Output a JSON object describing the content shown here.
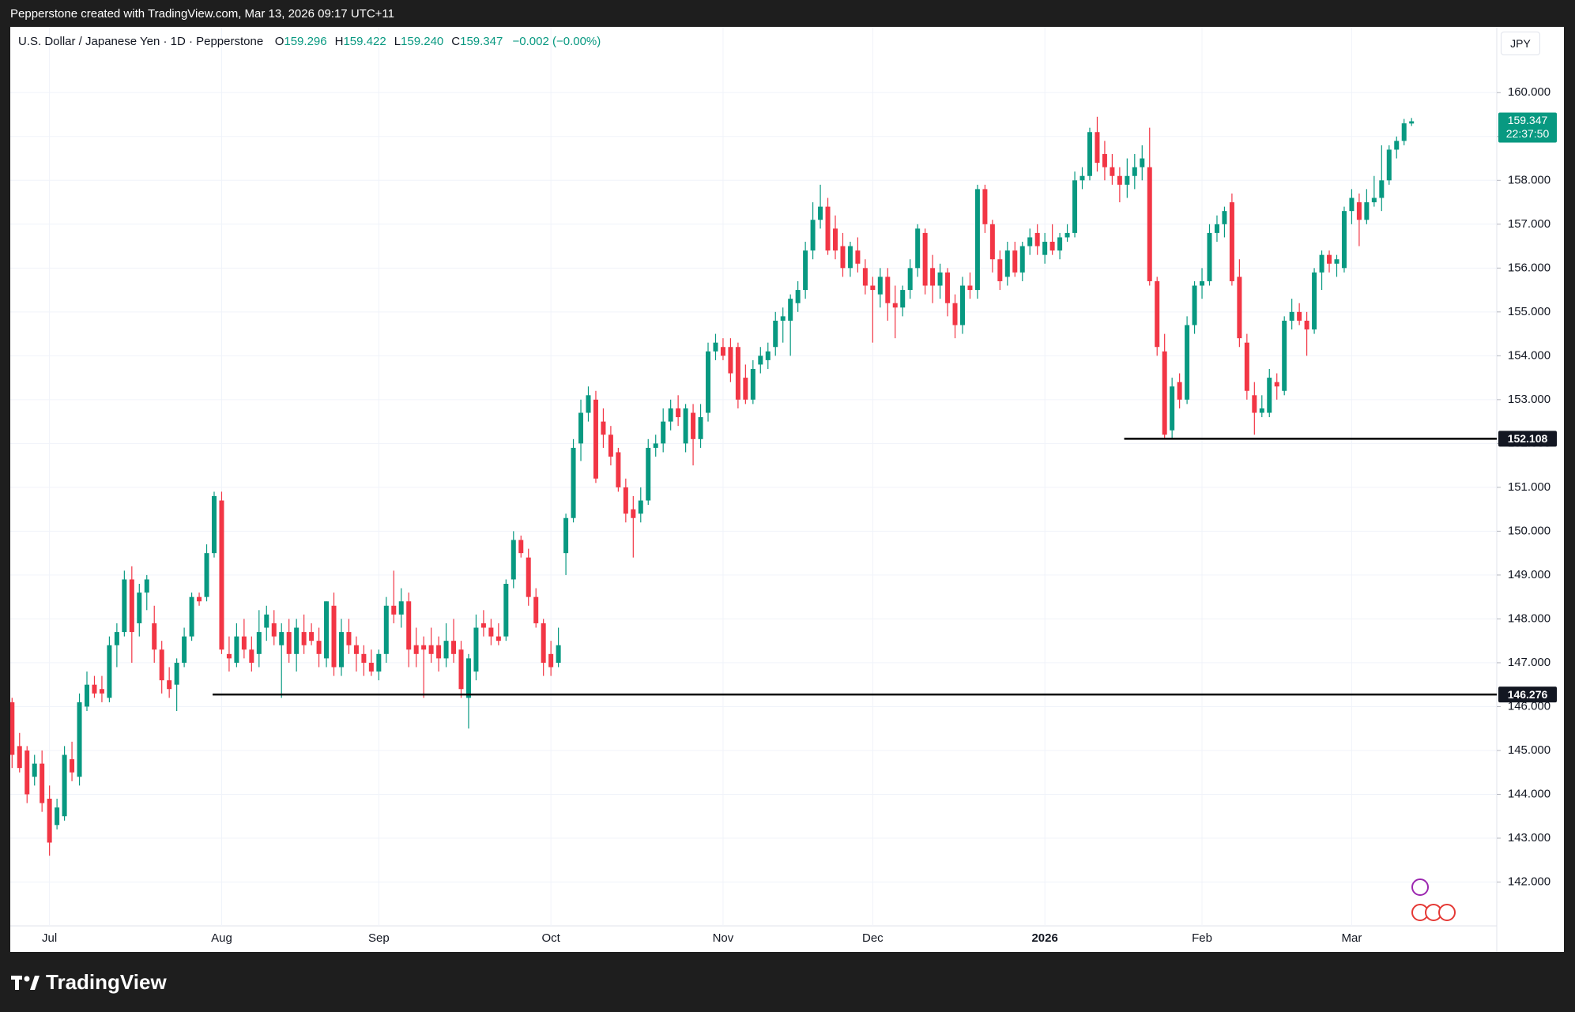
{
  "top_bar": "Pepperstone created with TradingView.com, Mar 13, 2026 09:17 UTC+11",
  "footer_logo": "TradingView",
  "currency_button": "JPY",
  "chart_data": {
    "type": "candlestick",
    "title": "U.S. Dollar / Japanese Yen · 1D · Pepperstone",
    "legend": [
      {
        "label": "O",
        "value": "159.296"
      },
      {
        "label": "H",
        "value": "159.422"
      },
      {
        "label": "L",
        "value": "159.240"
      },
      {
        "label": "C",
        "value": "159.347"
      }
    ],
    "change": "−0.002 (−0.00%)",
    "countdown": "22:37:50",
    "up_color": "#089981",
    "down_color": "#f23645",
    "grid": true,
    "ylim": [
      141,
      161.5
    ],
    "yticks": [
      {
        "value": 142,
        "label": "142.000"
      },
      {
        "value": 143,
        "label": "143.000"
      },
      {
        "value": 144,
        "label": "144.000"
      },
      {
        "value": 145,
        "label": "145.000"
      },
      {
        "value": 146,
        "label": "146.000"
      },
      {
        "value": 147,
        "label": "147.000"
      },
      {
        "value": 148,
        "label": "148.000"
      },
      {
        "value": 149,
        "label": "149.000"
      },
      {
        "value": 150,
        "label": "150.000"
      },
      {
        "value": 151,
        "label": "151.000"
      },
      {
        "value": 152,
        "label": "152.000"
      },
      {
        "value": 153,
        "label": "153.000"
      },
      {
        "value": 154,
        "label": "154.000"
      },
      {
        "value": 155,
        "label": "155.000"
      },
      {
        "value": 156,
        "label": "156.000"
      },
      {
        "value": 157,
        "label": "157.000"
      },
      {
        "value": 158,
        "label": "158.000"
      },
      {
        "value": 159,
        "label": "159.000"
      },
      {
        "value": 160,
        "label": "160.000"
      }
    ],
    "hlines": [
      {
        "value": 152.108
      },
      {
        "value": 146.276
      }
    ],
    "categories": [
      null,
      null,
      null,
      null,
      null,
      "Jul",
      null,
      null,
      null,
      null,
      null,
      null,
      null,
      null,
      null,
      null,
      null,
      null,
      null,
      null,
      null,
      null,
      null,
      null,
      null,
      null,
      null,
      null,
      "Aug",
      null,
      null,
      null,
      null,
      null,
      null,
      null,
      null,
      null,
      null,
      null,
      null,
      null,
      null,
      null,
      null,
      null,
      null,
      null,
      null,
      "Sep",
      null,
      null,
      null,
      null,
      null,
      null,
      null,
      null,
      null,
      null,
      null,
      null,
      null,
      null,
      null,
      null,
      null,
      null,
      null,
      null,
      null,
      null,
      "Oct",
      null,
      null,
      null,
      null,
      null,
      null,
      null,
      null,
      null,
      null,
      null,
      null,
      null,
      null,
      null,
      null,
      null,
      null,
      null,
      null,
      null,
      null,
      "Nov",
      null,
      null,
      null,
      null,
      null,
      null,
      null,
      null,
      null,
      null,
      null,
      null,
      null,
      null,
      null,
      null,
      null,
      null,
      null,
      "Dec",
      null,
      null,
      null,
      null,
      null,
      null,
      null,
      null,
      null,
      null,
      null,
      null,
      null,
      null,
      null,
      null,
      null,
      null,
      null,
      null,
      null,
      null,
      "2026",
      null,
      null,
      null,
      null,
      null,
      null,
      null,
      null,
      null,
      null,
      null,
      null,
      null,
      null,
      null,
      null,
      null,
      null,
      null,
      null,
      "Feb",
      null,
      null,
      null,
      null,
      null,
      null,
      null,
      null,
      null,
      null,
      null,
      null,
      null,
      null,
      null,
      null,
      null,
      null,
      null,
      "Mar",
      null,
      null,
      null,
      null,
      null,
      null,
      null,
      null
    ],
    "ohlc": [
      [
        146.1,
        146.2,
        144.6,
        144.9
      ],
      [
        145.1,
        145.4,
        144.5,
        144.6
      ],
      [
        145.0,
        145.1,
        143.8,
        144.0
      ],
      [
        144.4,
        144.9,
        144.2,
        144.7
      ],
      [
        144.7,
        145.0,
        143.6,
        143.8
      ],
      [
        143.9,
        144.2,
        142.6,
        142.9
      ],
      [
        143.3,
        143.9,
        143.2,
        143.7
      ],
      [
        143.5,
        145.1,
        143.4,
        144.9
      ],
      [
        144.8,
        145.2,
        144.3,
        144.5
      ],
      [
        144.4,
        146.3,
        144.2,
        146.1
      ],
      [
        146.0,
        146.8,
        145.9,
        146.5
      ],
      [
        146.5,
        146.7,
        146.2,
        146.3
      ],
      [
        146.4,
        146.7,
        146.1,
        146.3
      ],
      [
        146.2,
        147.6,
        146.1,
        147.4
      ],
      [
        147.4,
        147.9,
        146.9,
        147.7
      ],
      [
        147.7,
        149.1,
        147.6,
        148.9
      ],
      [
        148.9,
        149.2,
        147.0,
        147.7
      ],
      [
        147.9,
        148.8,
        147.6,
        148.6
      ],
      [
        148.6,
        149.0,
        148.2,
        148.9
      ],
      [
        147.9,
        148.3,
        147.0,
        147.3
      ],
      [
        147.3,
        147.5,
        146.3,
        146.6
      ],
      [
        146.6,
        146.9,
        146.2,
        146.4
      ],
      [
        146.5,
        147.1,
        145.9,
        147.0
      ],
      [
        147.0,
        147.8,
        146.9,
        147.6
      ],
      [
        147.6,
        148.6,
        147.5,
        148.5
      ],
      [
        148.5,
        148.6,
        148.3,
        148.4
      ],
      [
        148.5,
        149.7,
        148.4,
        149.5
      ],
      [
        149.5,
        150.9,
        149.4,
        150.8
      ],
      [
        150.7,
        150.9,
        147.2,
        147.3
      ],
      [
        147.2,
        147.6,
        146.8,
        147.1
      ],
      [
        147.0,
        147.9,
        146.9,
        147.6
      ],
      [
        147.6,
        148.0,
        147.1,
        147.3
      ],
      [
        147.3,
        147.6,
        146.8,
        147.0
      ],
      [
        147.2,
        148.2,
        146.9,
        147.7
      ],
      [
        147.8,
        148.3,
        147.5,
        148.1
      ],
      [
        147.9,
        148.2,
        147.4,
        147.6
      ],
      [
        147.4,
        147.9,
        146.2,
        147.7
      ],
      [
        147.7,
        148.0,
        147.0,
        147.2
      ],
      [
        147.2,
        148.0,
        146.8,
        147.8
      ],
      [
        147.7,
        148.1,
        147.2,
        147.4
      ],
      [
        147.7,
        147.9,
        147.4,
        147.5
      ],
      [
        147.5,
        147.8,
        146.9,
        147.2
      ],
      [
        147.1,
        148.4,
        146.9,
        148.4
      ],
      [
        148.3,
        148.6,
        146.7,
        146.9
      ],
      [
        146.9,
        148.0,
        146.7,
        147.7
      ],
      [
        147.7,
        148.0,
        147.2,
        147.4
      ],
      [
        147.4,
        147.6,
        146.8,
        147.2
      ],
      [
        147.2,
        147.4,
        146.7,
        147.0
      ],
      [
        147.0,
        147.3,
        146.7,
        146.8
      ],
      [
        146.8,
        147.3,
        146.6,
        147.2
      ],
      [
        147.2,
        148.5,
        147.0,
        148.3
      ],
      [
        148.3,
        149.1,
        147.9,
        148.1
      ],
      [
        148.1,
        148.7,
        147.8,
        148.4
      ],
      [
        148.4,
        148.6,
        146.9,
        147.3
      ],
      [
        147.4,
        147.8,
        146.9,
        147.2
      ],
      [
        147.4,
        147.6,
        146.2,
        147.3
      ],
      [
        147.4,
        147.8,
        147.0,
        147.2
      ],
      [
        147.4,
        147.6,
        146.8,
        147.1
      ],
      [
        147.1,
        147.9,
        146.9,
        147.5
      ],
      [
        147.5,
        148.0,
        147.0,
        147.2
      ],
      [
        147.3,
        147.5,
        146.2,
        146.4
      ],
      [
        146.2,
        147.2,
        145.5,
        147.1
      ],
      [
        146.8,
        148.1,
        146.6,
        147.8
      ],
      [
        147.9,
        148.2,
        147.6,
        147.8
      ],
      [
        147.8,
        148.0,
        147.4,
        147.6
      ],
      [
        147.6,
        147.9,
        147.4,
        147.5
      ],
      [
        147.6,
        148.9,
        147.5,
        148.8
      ],
      [
        148.9,
        150.0,
        148.7,
        149.8
      ],
      [
        149.8,
        149.9,
        149.4,
        149.5
      ],
      [
        149.4,
        149.6,
        148.3,
        148.5
      ],
      [
        148.5,
        148.7,
        147.8,
        147.9
      ],
      [
        147.9,
        148.0,
        146.7,
        147.0
      ],
      [
        147.2,
        147.5,
        146.7,
        146.9
      ],
      [
        147.0,
        147.8,
        146.9,
        147.4
      ],
      [
        149.5,
        150.4,
        149.0,
        150.3
      ],
      [
        150.3,
        152.1,
        150.2,
        151.9
      ],
      [
        152.0,
        153.0,
        151.6,
        152.7
      ],
      [
        152.7,
        153.3,
        152.5,
        153.1
      ],
      [
        153.0,
        153.2,
        151.1,
        151.2
      ],
      [
        152.5,
        152.8,
        151.9,
        152.2
      ],
      [
        152.2,
        152.4,
        151.5,
        151.7
      ],
      [
        151.8,
        151.9,
        150.9,
        151.0
      ],
      [
        151.0,
        151.2,
        150.2,
        150.4
      ],
      [
        150.5,
        150.8,
        149.4,
        150.3
      ],
      [
        150.4,
        151.0,
        150.2,
        150.7
      ],
      [
        150.7,
        152.1,
        150.6,
        151.9
      ],
      [
        151.9,
        152.2,
        151.7,
        152.0
      ],
      [
        152.0,
        152.8,
        151.8,
        152.5
      ],
      [
        152.5,
        153.0,
        152.3,
        152.8
      ],
      [
        152.8,
        153.1,
        152.4,
        152.6
      ],
      [
        152.0,
        152.9,
        151.8,
        152.8
      ],
      [
        152.7,
        152.9,
        151.5,
        152.1
      ],
      [
        152.1,
        152.9,
        151.9,
        152.6
      ],
      [
        152.7,
        154.3,
        152.5,
        154.1
      ],
      [
        154.1,
        154.5,
        153.9,
        154.3
      ],
      [
        154.2,
        154.4,
        153.9,
        154.0
      ],
      [
        154.2,
        154.4,
        153.4,
        153.6
      ],
      [
        154.2,
        154.3,
        152.8,
        153.0
      ],
      [
        153.5,
        153.8,
        152.9,
        153.0
      ],
      [
        153.0,
        153.9,
        152.9,
        153.7
      ],
      [
        153.8,
        154.2,
        153.6,
        154.0
      ],
      [
        153.9,
        154.3,
        153.7,
        154.1
      ],
      [
        154.2,
        155.0,
        154.0,
        154.8
      ],
      [
        154.8,
        155.1,
        154.3,
        154.9
      ],
      [
        154.8,
        155.4,
        154.0,
        155.3
      ],
      [
        155.2,
        155.7,
        155.0,
        155.5
      ],
      [
        155.5,
        156.6,
        155.3,
        156.4
      ],
      [
        156.4,
        157.5,
        156.2,
        157.1
      ],
      [
        157.1,
        157.9,
        156.9,
        157.4
      ],
      [
        157.4,
        157.6,
        156.3,
        156.4
      ],
      [
        156.9,
        157.2,
        156.2,
        156.4
      ],
      [
        156.5,
        156.8,
        155.8,
        156.0
      ],
      [
        156.0,
        156.6,
        155.8,
        156.5
      ],
      [
        156.4,
        156.7,
        155.9,
        156.1
      ],
      [
        156.0,
        156.2,
        155.4,
        155.6
      ],
      [
        155.6,
        155.8,
        154.3,
        155.5
      ],
      [
        155.4,
        156.0,
        155.1,
        155.8
      ],
      [
        155.8,
        156.0,
        154.8,
        155.2
      ],
      [
        155.2,
        155.6,
        154.4,
        155.1
      ],
      [
        155.1,
        155.6,
        154.9,
        155.5
      ],
      [
        155.5,
        156.2,
        155.3,
        156.0
      ],
      [
        156.0,
        157.0,
        155.8,
        156.9
      ],
      [
        156.8,
        156.9,
        155.4,
        155.6
      ],
      [
        156.0,
        156.3,
        155.2,
        155.6
      ],
      [
        155.6,
        156.1,
        155.3,
        155.9
      ],
      [
        155.9,
        156.0,
        154.9,
        155.2
      ],
      [
        155.2,
        155.4,
        154.4,
        154.7
      ],
      [
        154.7,
        155.8,
        154.5,
        155.6
      ],
      [
        155.6,
        155.9,
        155.3,
        155.5
      ],
      [
        155.5,
        157.9,
        155.3,
        157.8
      ],
      [
        157.8,
        157.9,
        156.8,
        157.0
      ],
      [
        157.0,
        157.1,
        155.9,
        156.2
      ],
      [
        156.2,
        156.4,
        155.5,
        155.7
      ],
      [
        155.8,
        156.6,
        155.6,
        156.4
      ],
      [
        156.4,
        156.6,
        155.8,
        155.9
      ],
      [
        155.9,
        156.6,
        155.7,
        156.5
      ],
      [
        156.5,
        156.9,
        156.3,
        156.7
      ],
      [
        156.8,
        157.0,
        156.3,
        156.5
      ],
      [
        156.3,
        156.8,
        156.1,
        156.6
      ],
      [
        156.6,
        157.0,
        156.3,
        156.4
      ],
      [
        156.4,
        156.8,
        156.2,
        156.7
      ],
      [
        156.7,
        157.0,
        156.6,
        156.8
      ],
      [
        156.8,
        158.2,
        156.7,
        158.0
      ],
      [
        158.0,
        158.3,
        157.8,
        158.1
      ],
      [
        158.1,
        159.2,
        158.0,
        159.1
      ],
      [
        159.1,
        159.45,
        158.2,
        158.4
      ],
      [
        158.6,
        158.9,
        158.0,
        158.3
      ],
      [
        158.3,
        158.6,
        157.9,
        158.1
      ],
      [
        158.1,
        158.3,
        157.5,
        157.9
      ],
      [
        157.9,
        158.5,
        157.6,
        158.1
      ],
      [
        158.1,
        158.6,
        157.8,
        158.3
      ],
      [
        158.3,
        158.8,
        158.0,
        158.5
      ],
      [
        158.3,
        159.2,
        155.6,
        155.7
      ],
      [
        155.7,
        155.8,
        154.0,
        154.2
      ],
      [
        154.1,
        154.5,
        152.108,
        152.2
      ],
      [
        152.3,
        153.5,
        152.1,
        153.3
      ],
      [
        153.4,
        153.6,
        152.8,
        153.0
      ],
      [
        153.0,
        154.9,
        152.9,
        154.7
      ],
      [
        154.7,
        155.7,
        154.5,
        155.6
      ],
      [
        155.6,
        156.0,
        155.3,
        155.7
      ],
      [
        155.7,
        157.0,
        155.6,
        156.8
      ],
      [
        156.8,
        157.2,
        156.6,
        157.0
      ],
      [
        157.0,
        157.4,
        156.7,
        157.3
      ],
      [
        157.5,
        157.7,
        155.6,
        155.7
      ],
      [
        155.8,
        156.2,
        154.2,
        154.4
      ],
      [
        154.3,
        154.5,
        153.0,
        153.2
      ],
      [
        153.1,
        153.4,
        152.2,
        152.7
      ],
      [
        152.7,
        153.1,
        152.6,
        152.8
      ],
      [
        152.7,
        153.7,
        152.6,
        153.5
      ],
      [
        153.4,
        153.6,
        153.0,
        153.3
      ],
      [
        153.2,
        154.9,
        153.1,
        154.8
      ],
      [
        154.8,
        155.3,
        154.6,
        155.0
      ],
      [
        155.0,
        155.2,
        154.7,
        154.8
      ],
      [
        154.8,
        155.0,
        154.0,
        154.6
      ],
      [
        154.6,
        156.0,
        154.5,
        155.9
      ],
      [
        155.9,
        156.4,
        155.5,
        156.3
      ],
      [
        156.3,
        156.4,
        155.9,
        156.1
      ],
      [
        156.1,
        156.3,
        155.8,
        156.2
      ],
      [
        156.0,
        157.4,
        155.9,
        157.3
      ],
      [
        157.3,
        157.8,
        157.0,
        157.6
      ],
      [
        157.5,
        157.7,
        156.5,
        157.1
      ],
      [
        157.1,
        157.8,
        157.0,
        157.5
      ],
      [
        157.5,
        158.1,
        157.4,
        157.6
      ],
      [
        157.6,
        158.8,
        157.3,
        158.0
      ],
      [
        158.0,
        158.8,
        157.9,
        158.7
      ],
      [
        158.7,
        159.0,
        158.5,
        158.9
      ],
      [
        158.9,
        159.4,
        158.8,
        159.3
      ],
      [
        159.296,
        159.422,
        159.24,
        159.347
      ]
    ]
  }
}
